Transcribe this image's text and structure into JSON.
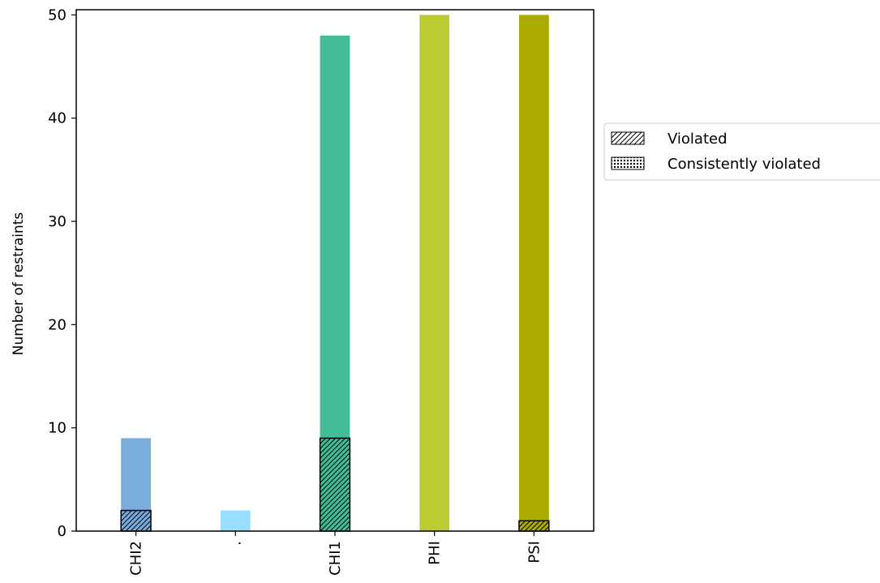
{
  "chart_data": {
    "type": "bar",
    "categories": [
      "CHI2",
      ".",
      "CHI1",
      "PHI",
      "PSI"
    ],
    "series": [
      {
        "values": [
          9,
          2,
          48,
          50,
          50
        ]
      },
      {
        "name": "Violated",
        "values": [
          2,
          0,
          9,
          0,
          1
        ]
      },
      {
        "name": "Consistently violated",
        "values": [
          0,
          0,
          0,
          0,
          0
        ]
      }
    ],
    "colors": [
      "#7aacdc",
      "#99ddff",
      "#44bb99",
      "#bbcc33",
      "#aaaa00"
    ],
    "title": "",
    "xlabel": "",
    "ylabel": "Number of restraints",
    "ylim": [
      0,
      50.5
    ],
    "yticks": [
      0,
      10,
      20,
      30,
      40,
      50
    ],
    "grid": false,
    "legend": {
      "placement": "right-outside",
      "entries": [
        "Violated",
        "Consistently violated"
      ]
    }
  }
}
